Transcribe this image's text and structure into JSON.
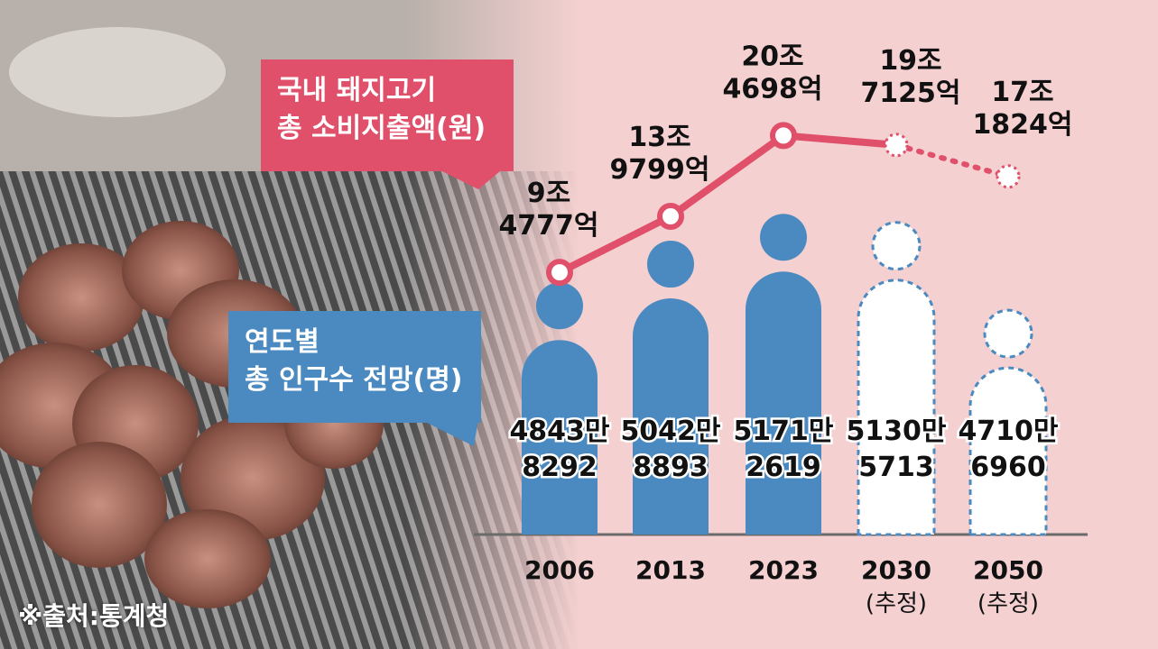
{
  "labels": {
    "pork_title_line1": "국내 돼지고기",
    "pork_title_line2": "총 소비지출액(원)",
    "pop_title_line1": "연도별",
    "pop_title_line2": "총 인구수 전망(명)",
    "source": "※출처:통계청"
  },
  "colors": {
    "line": "#e0506a",
    "population": "#4a8ac0",
    "background": "#f4d0d0"
  },
  "chart_data": [
    {
      "type": "line",
      "title": "국내 돼지고기 총 소비지출액(원)",
      "x": [
        "2006",
        "2013",
        "2023",
        "2030",
        "2050"
      ],
      "series": [
        {
          "values_label": [
            "9조 4777억",
            "13조 9799억",
            "20조 4698억",
            "19조 7125억",
            "17조 1824억"
          ],
          "values": [
            94777,
            139799,
            204698,
            197125,
            171824
          ],
          "value_unit": "억 원",
          "line_top": [
            "9조",
            "13조",
            "20조",
            "19조",
            "17조"
          ],
          "line_bottom": [
            "4777억",
            "9799억",
            "4698억",
            "7125억",
            "1824억"
          ],
          "projected": [
            false,
            false,
            false,
            true,
            true
          ]
        }
      ]
    },
    {
      "type": "bar",
      "title": "연도별 총 인구수 전망(명)",
      "categories": [
        "2006",
        "2013",
        "2023",
        "2030",
        "2050"
      ],
      "category_notes": [
        "",
        "",
        "",
        "(추정)",
        "(추정)"
      ],
      "values": [
        48438292,
        50428893,
        51712619,
        51305713,
        47106960
      ],
      "label_top": [
        "4843만",
        "5042만",
        "5171만",
        "5130만",
        "4710만"
      ],
      "label_bottom": [
        "8292",
        "8893",
        "2619",
        "5713",
        "6960"
      ],
      "projected": [
        false,
        false,
        false,
        true,
        true
      ]
    }
  ]
}
